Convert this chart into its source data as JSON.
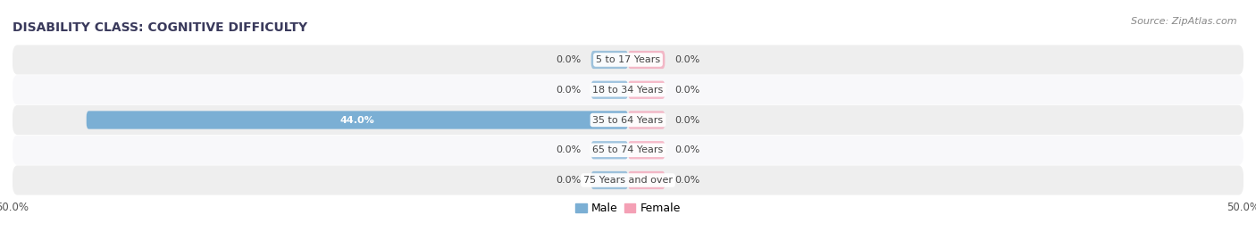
{
  "title": "DISABILITY CLASS: COGNITIVE DIFFICULTY",
  "source": "Source: ZipAtlas.com",
  "categories": [
    "5 to 17 Years",
    "18 to 34 Years",
    "35 to 64 Years",
    "65 to 74 Years",
    "75 Years and over"
  ],
  "male_values": [
    0.0,
    0.0,
    44.0,
    0.0,
    0.0
  ],
  "female_values": [
    0.0,
    0.0,
    0.0,
    0.0,
    0.0
  ],
  "xlim_left": -50,
  "xlim_right": 50,
  "male_bar_color": "#7BAFD4",
  "female_bar_color": "#F4A0B5",
  "row_colors": [
    "#EEEEEE",
    "#F8F8FA"
  ],
  "label_color": "#444444",
  "title_color": "#3A3A5C",
  "source_color": "#888888",
  "axis_tick_color": "#555555",
  "legend_male_color": "#7BAFD4",
  "legend_female_color": "#F4A0B5"
}
